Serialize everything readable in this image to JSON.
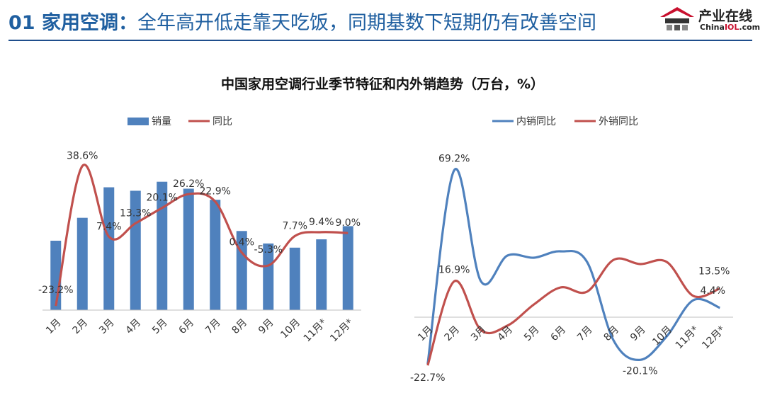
{
  "header": {
    "title_strong": "01 家用空调：",
    "title_rest": "全年高开低走靠天吃饭，同期基数下短期仍有改善空间"
  },
  "logo": {
    "name_cn": "产业在线",
    "name_en_prefix": "China",
    "name_en_accent": "IOL",
    "name_en_suffix": ".com",
    "icon": "house-logo-icon"
  },
  "colors": {
    "bar": "#4f81bd",
    "red_line": "#c0504d",
    "blue_line": "#4f81bd",
    "title": "#1f5fa0"
  },
  "chart_title": "中国家用空调行业季节特征和内外销趋势（万台，%）",
  "chart_data": [
    {
      "type": "bar+line",
      "categories": [
        "1月",
        "2月",
        "3月",
        "4月",
        "5月",
        "6月",
        "7月",
        "8月",
        "9月",
        "10月",
        "11月*",
        "12月*"
      ],
      "legend": [
        "销量",
        "同比"
      ],
      "legend_position": "top",
      "grid": false,
      "series": [
        {
          "name": "销量",
          "type": "bar",
          "values": [
            100,
            133,
            177,
            172,
            185,
            175,
            159,
            114,
            96,
            90,
            102,
            121
          ]
        },
        {
          "name": "同比",
          "type": "line",
          "unit": "%",
          "values": [
            -23.2,
            38.6,
            7.4,
            13.3,
            20.1,
            26.2,
            22.9,
            0.4,
            -5.3,
            7.7,
            9.4,
            9.0
          ],
          "labels": [
            "-23.2%",
            "38.6%",
            "7.4%",
            "13.3%",
            "20.1%",
            "26.2%",
            "22.9%",
            "0.4%",
            "-5.3%",
            "7.7%",
            "9.4%",
            "9.0%"
          ]
        }
      ]
    },
    {
      "type": "line",
      "categories": [
        "1月",
        "2月",
        "3月",
        "4月",
        "5月",
        "6月",
        "7月",
        "8月",
        "9月",
        "10月",
        "11月*",
        "12月*"
      ],
      "legend": [
        "内销同比",
        "外销同比"
      ],
      "legend_position": "top",
      "grid": false,
      "unit": "%",
      "series": [
        {
          "name": "内销同比",
          "values": [
            -22.0,
            69.2,
            17.0,
            29.0,
            28.0,
            31.0,
            26.0,
            -11.0,
            -20.1,
            -9.0,
            8.0,
            4.4
          ]
        },
        {
          "name": "外销同比",
          "values": [
            -22.7,
            16.9,
            -6.0,
            -4.0,
            6.0,
            14.0,
            12.0,
            27.0,
            25.0,
            26.0,
            10.0,
            13.5
          ]
        }
      ],
      "point_labels": [
        {
          "series": 0,
          "index": 1,
          "text": "69.2%"
        },
        {
          "series": 0,
          "index": 8,
          "text": "-20.1%"
        },
        {
          "series": 0,
          "index": 11,
          "text": "4.4%"
        },
        {
          "series": 1,
          "index": 0,
          "text": "-22.7%"
        },
        {
          "series": 1,
          "index": 1,
          "text": "16.9%"
        },
        {
          "series": 1,
          "index": 11,
          "text": "13.5%"
        }
      ]
    }
  ]
}
